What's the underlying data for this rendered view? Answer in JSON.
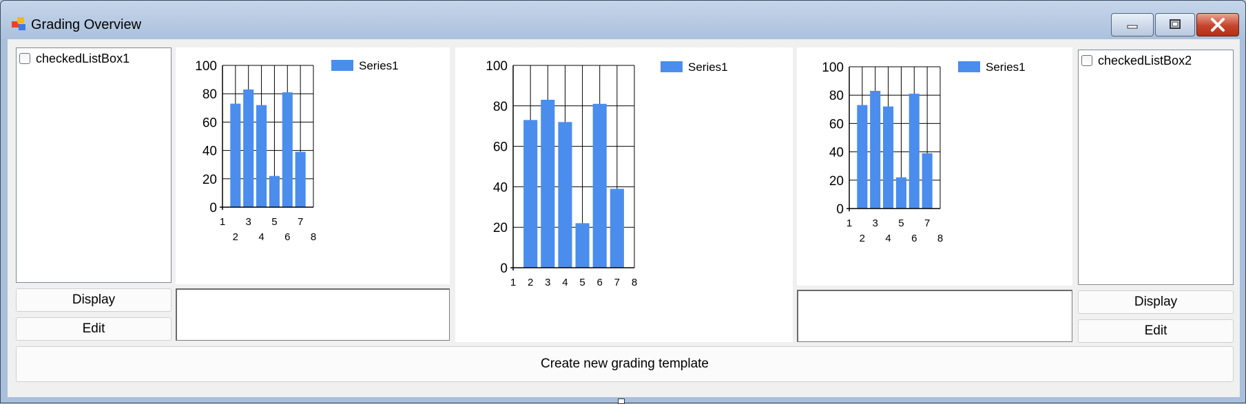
{
  "window": {
    "title": "Grading Overview",
    "icon": "app-window-icon",
    "caption_buttons": [
      "minimize-icon",
      "restore-icon",
      "close-icon"
    ],
    "colors": {
      "title_bg": "#a9bfdb",
      "close_button": "#c5442b",
      "bar_color": "#4a8ded"
    }
  },
  "left": {
    "list": {
      "items": [
        {
          "label": "checkedListBox1",
          "checked": false
        }
      ]
    },
    "display_label": "Display",
    "edit_label": "Edit",
    "textbox_value": ""
  },
  "right": {
    "list": {
      "items": [
        {
          "label": "checkedListBox2",
          "checked": false
        }
      ]
    },
    "display_label": "Display",
    "edit_label": "Edit",
    "textbox_value": ""
  },
  "bottom": {
    "create_label": "Create new grading template"
  },
  "chart_data": [
    {
      "type": "bar",
      "legend": "Series1",
      "legend_position": "top-right",
      "x": [
        2,
        3,
        4,
        5,
        6,
        7
      ],
      "values": [
        73,
        83,
        72,
        22,
        81,
        39
      ],
      "xlim": [
        1,
        8
      ],
      "x_ticks": [
        1,
        2,
        3,
        4,
        5,
        6,
        7,
        8
      ],
      "ylim": [
        0,
        100
      ],
      "y_ticks": [
        0,
        20,
        40,
        60,
        80,
        100
      ],
      "grid": true
    },
    {
      "type": "bar",
      "legend": "Series1",
      "legend_position": "top-right",
      "x": [
        2,
        3,
        4,
        5,
        6,
        7
      ],
      "values": [
        73,
        83,
        72,
        22,
        81,
        39
      ],
      "xlim": [
        1,
        8
      ],
      "x_ticks": [
        1,
        2,
        3,
        4,
        5,
        6,
        7,
        8
      ],
      "ylim": [
        0,
        100
      ],
      "y_ticks": [
        0,
        20,
        40,
        60,
        80,
        100
      ],
      "grid": true
    },
    {
      "type": "bar",
      "legend": "Series1",
      "legend_position": "top-right",
      "x": [
        2,
        3,
        4,
        5,
        6,
        7
      ],
      "values": [
        73,
        83,
        72,
        22,
        81,
        39
      ],
      "xlim": [
        1,
        8
      ],
      "x_ticks": [
        1,
        2,
        3,
        4,
        5,
        6,
        7,
        8
      ],
      "ylim": [
        0,
        100
      ],
      "y_ticks": [
        0,
        20,
        40,
        60,
        80,
        100
      ],
      "grid": true
    }
  ]
}
